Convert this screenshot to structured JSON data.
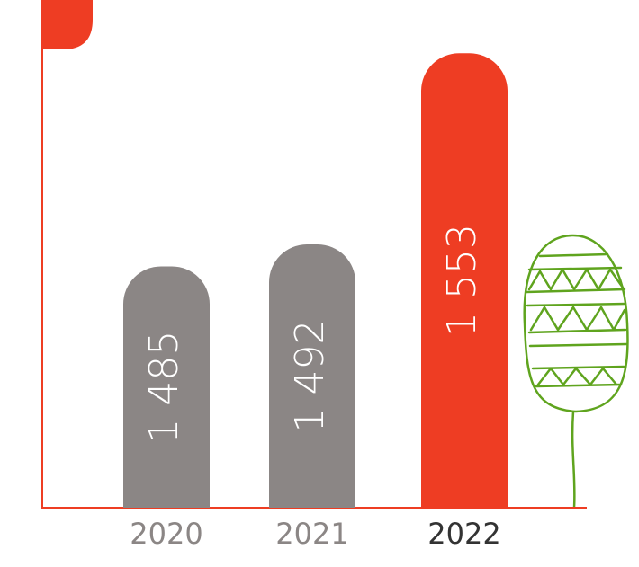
{
  "chart_data": {
    "type": "bar",
    "categories": [
      "2020",
      "2021",
      "2022"
    ],
    "values": [
      1485,
      1492,
      1553
    ],
    "value_labels": [
      "1 485",
      "1 492",
      "1 553"
    ],
    "colors": [
      "#8b8685",
      "#8b8685",
      "#ee3d23"
    ],
    "category_label_colors": [
      "#8b8685",
      "#8b8685",
      "#333333"
    ],
    "axis_color": "#ee3d23",
    "ylim": [
      1408,
      1570
    ]
  }
}
